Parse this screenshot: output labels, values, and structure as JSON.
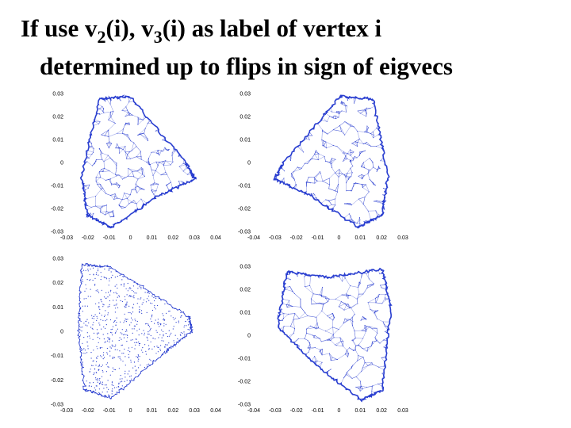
{
  "title": {
    "line1_pre": "If use v",
    "line1_sub_a": "2",
    "line1_mid": "(i), v",
    "line1_sub_b": "3",
    "line1_post": "(i) as label of vertex i",
    "line2": "determined up to flips in sign of eigvecs"
  },
  "colors": {
    "mesh": "#2a3fd0",
    "text": "#000000",
    "background": "#ffffff"
  },
  "plots": [
    {
      "name": "top-left",
      "y_ticks": [
        "0.03",
        "0.02",
        "0.01",
        "0",
        "-0.01",
        "-0.02",
        "-0.03"
      ],
      "x_ticks": [
        "-0.03",
        "-0.02",
        "-0.01",
        "0",
        "0.01",
        "0.02",
        "0.03",
        "0.04"
      ],
      "density": "mesh"
    },
    {
      "name": "top-right",
      "y_ticks": [
        "0.03",
        "0.02",
        "0.01",
        "0",
        "-0.01",
        "-0.02",
        "-0.03"
      ],
      "x_ticks": [
        "-0.04",
        "-0.03",
        "-0.02",
        "-0.01",
        "0",
        "0.01",
        "0.02",
        "0.03"
      ],
      "density": "mesh"
    },
    {
      "name": "bottom-left",
      "y_ticks": [
        "0.03",
        "0.02",
        "0.01",
        "0",
        "-0.01",
        "-0.02",
        "-0.03"
      ],
      "x_ticks": [
        "-0.03",
        "-0.02",
        "-0.01",
        "0",
        "0.01",
        "0.02",
        "0.03",
        "0.04"
      ],
      "density": "points"
    },
    {
      "name": "bottom-right",
      "y_ticks": [
        "0.03",
        "0.02",
        "0.01",
        "0",
        "-0.01",
        "-0.02",
        "-0.03"
      ],
      "x_ticks": [
        "-0.04",
        "-0.03",
        "-0.02",
        "-0.01",
        "0",
        "0.01",
        "0.02",
        "0.03"
      ],
      "density": "mesh"
    }
  ]
}
